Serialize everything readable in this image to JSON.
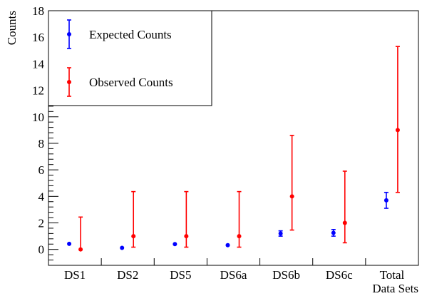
{
  "chart_data": {
    "type": "scatter",
    "xlabel": "Data Sets",
    "ylabel": "Counts",
    "ylim": [
      -1.2,
      18
    ],
    "yticks": [
      0,
      2,
      4,
      6,
      8,
      10,
      12,
      14,
      16,
      18
    ],
    "categories": [
      "DS1",
      "DS2",
      "DS5",
      "DS6a",
      "DS6b",
      "DS6c",
      "Total"
    ],
    "grid": false,
    "legend_placement": "top-left",
    "series": [
      {
        "name": "Expected Counts",
        "color": "#0000ff",
        "values": [
          0.42,
          0.12,
          0.4,
          0.32,
          1.2,
          1.25,
          3.7
        ],
        "err_low": [
          0.02,
          0.02,
          0.02,
          0.02,
          0.2,
          0.25,
          0.6
        ],
        "err_high": [
          0.02,
          0.02,
          0.02,
          0.02,
          0.2,
          0.25,
          0.6
        ]
      },
      {
        "name": "Observed Counts",
        "color": "#ff0000",
        "values": [
          0,
          1,
          1,
          1,
          4,
          2,
          9
        ],
        "err_low": [
          0,
          0.83,
          0.83,
          0.83,
          2.54,
          1.5,
          4.7
        ],
        "err_high": [
          2.44,
          3.36,
          3.36,
          3.36,
          4.6,
          3.9,
          6.3
        ]
      }
    ]
  }
}
